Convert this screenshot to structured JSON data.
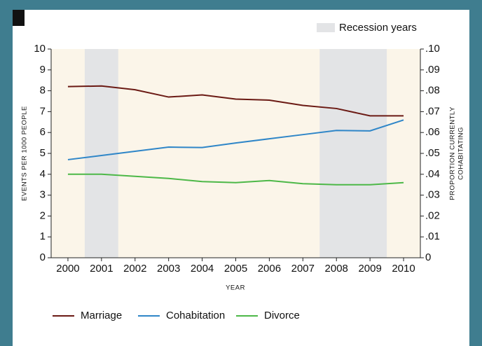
{
  "chart_data": {
    "type": "line",
    "x": [
      2000,
      2001,
      2002,
      2003,
      2004,
      2005,
      2006,
      2007,
      2008,
      2009,
      2010
    ],
    "series": [
      {
        "name": "Marriage",
        "color": "#6b1a14",
        "values": [
          8.2,
          8.23,
          8.05,
          7.7,
          7.8,
          7.6,
          7.55,
          7.3,
          7.15,
          6.8,
          6.8
        ]
      },
      {
        "name": "Cohabitation",
        "color": "#2f86c8",
        "axis": "y2",
        "values": [
          0.047,
          0.049,
          0.051,
          0.053,
          0.0528,
          0.055,
          0.057,
          0.059,
          0.061,
          0.0608,
          0.066
        ]
      },
      {
        "name": "Divorce",
        "color": "#4db848",
        "values": [
          4.0,
          4.0,
          3.9,
          3.8,
          3.65,
          3.6,
          3.7,
          3.55,
          3.5,
          3.5,
          3.6
        ]
      }
    ],
    "recession_label": "Recession years",
    "recessions": [
      [
        2000.5,
        2001.5
      ],
      [
        2007.5,
        2009.5
      ]
    ],
    "recession_color": "#e3e4e6",
    "xlim": [
      1999.5,
      2010.5
    ],
    "xticks": [
      2000,
      2001,
      2002,
      2003,
      2004,
      2005,
      2006,
      2007,
      2008,
      2009,
      2010
    ],
    "ylim": [
      0,
      10
    ],
    "yticks": [
      0,
      1,
      2,
      3,
      4,
      5,
      6,
      7,
      8,
      9,
      10
    ],
    "y2lim": [
      0,
      0.1
    ],
    "y2ticks": [
      0,
      {
        "value": 0.01,
        "label": ".01"
      },
      {
        "value": 0.02,
        "label": ".02"
      },
      {
        "value": 0.03,
        "label": ".03"
      },
      {
        "value": 0.04,
        "label": ".04"
      },
      {
        "value": 0.05,
        "label": ".05"
      },
      {
        "value": 0.06,
        "label": ".06"
      },
      {
        "value": 0.07,
        "label": ".07"
      },
      {
        "value": 0.08,
        "label": ".08"
      },
      {
        "value": 0.09,
        "label": ".09"
      },
      {
        "value": 0.1,
        "label": ".10"
      }
    ],
    "xlabel": "YEAR",
    "ylabel": "EVENTS PER 1000 PEOPLE",
    "y2label": [
      "PROPORTION CURRENTLY",
      "COHABITATING"
    ],
    "legend": "bottom-left"
  }
}
